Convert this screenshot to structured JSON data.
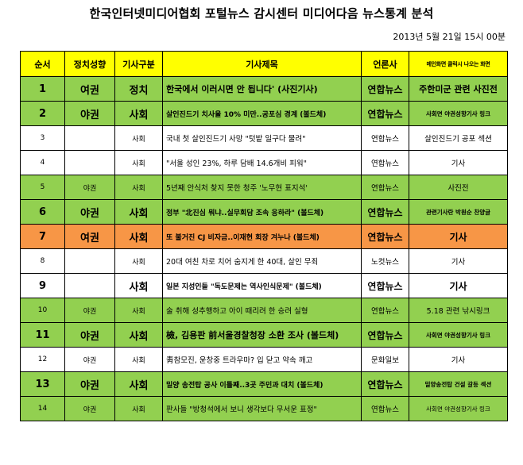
{
  "header": {
    "title": "한국인터넷미디어협회 포털뉴스 감시센터 미디어다음 뉴스통계 분석",
    "datetime": "2013년 5월 21일 15시 00분"
  },
  "table": {
    "columns": [
      "순서",
      "정치성향",
      "기사구분",
      "기사제목",
      "언론사",
      "메인화면 클릭시 나오는 화면"
    ],
    "rows": [
      {
        "num": "1",
        "pol": "여권",
        "cat": "정치",
        "title": "한국에서 이러시면 안 됩니다' (사진기사)",
        "src": "연합뉴스",
        "note": "주한미군 관련 사진전"
      },
      {
        "num": "2",
        "pol": "야권",
        "cat": "사회",
        "title": "살인진드기 치사율 10% 미만..공포심 경계 (볼드체)",
        "src": "연합뉴스",
        "note": "사회면 야권성향기사 링크"
      },
      {
        "num": "3",
        "pol": "",
        "cat": "사회",
        "title": "국내 첫 살인진드기 사망 \"텃밭 일구다 물려\"",
        "src": "연합뉴스",
        "note": "살인진드기 공포 섹션"
      },
      {
        "num": "4",
        "pol": "",
        "cat": "사회",
        "title": "\"서울 성인 23%, 하루 담배 14.6개비 피워\"",
        "src": "연합뉴스",
        "note": "기사"
      },
      {
        "num": "5",
        "pol": "야권",
        "cat": "사회",
        "title": "5년째 안식처 찾지 못한 청주 '노무현 표지석'",
        "src": "연합뉴스",
        "note": "사진전"
      },
      {
        "num": "6",
        "pol": "야권",
        "cat": "사회",
        "title": "정부 \"北진심 뭐냐..실무회담 조속 응하라\" (볼드체)",
        "src": "연합뉴스",
        "note": "관련기사란 박원순 찬양글"
      },
      {
        "num": "7",
        "pol": "여권",
        "cat": "사회",
        "title": "또 불거진 CJ 비자금..이재현 회장 겨누나 (볼드체)",
        "src": "연합뉴스",
        "note": "기사"
      },
      {
        "num": "8",
        "pol": "",
        "cat": "사회",
        "title": "20대 여친 차로 치어 숨지게 한 40대, 살인 무죄",
        "src": "노컷뉴스",
        "note": "기사"
      },
      {
        "num": "9",
        "pol": "",
        "cat": "사회",
        "title": "일본 지성인들 \"독도문제는 역사인식문제\" (볼드체)",
        "src": "연합뉴스",
        "note": "기사"
      },
      {
        "num": "10",
        "pol": "야권",
        "cat": "사회",
        "title": "술 취해 성추행하고 아이 때리려 한 승려 실형",
        "src": "연합뉴스",
        "note": "5.18 관련 낚시링크"
      },
      {
        "num": "11",
        "pol": "야권",
        "cat": "사회",
        "title": "檢, 김용판 前서울경찰청장 소환 조사 (볼드체)",
        "src": "연합뉴스",
        "note": "사회면 야권성향기사 링크"
      },
      {
        "num": "12",
        "pol": "야권",
        "cat": "사회",
        "title": "靑참모진, 윤창중 트라우마? 입 닫고 약속 깨고",
        "src": "문화일보",
        "note": "기사"
      },
      {
        "num": "13",
        "pol": "야권",
        "cat": "사회",
        "title": "밀양 송전탑 공사 이틀째..3곳 주민과 대치 (볼드체)",
        "src": "연합뉴스",
        "note": "밀양송전탑 건설 갈등 섹션"
      },
      {
        "num": "14",
        "pol": "야권",
        "cat": "사회",
        "title": "판사들 \"방청석에서 보니 생각보다 무서운 표정\"",
        "src": "연합뉴스",
        "note": "사회면 야권성향기사 링크"
      }
    ]
  },
  "colors": {
    "header_bg": "#ffff00",
    "highlight_green": "#92d050",
    "highlight_orange": "#f79646",
    "plain": "#ffffff"
  }
}
